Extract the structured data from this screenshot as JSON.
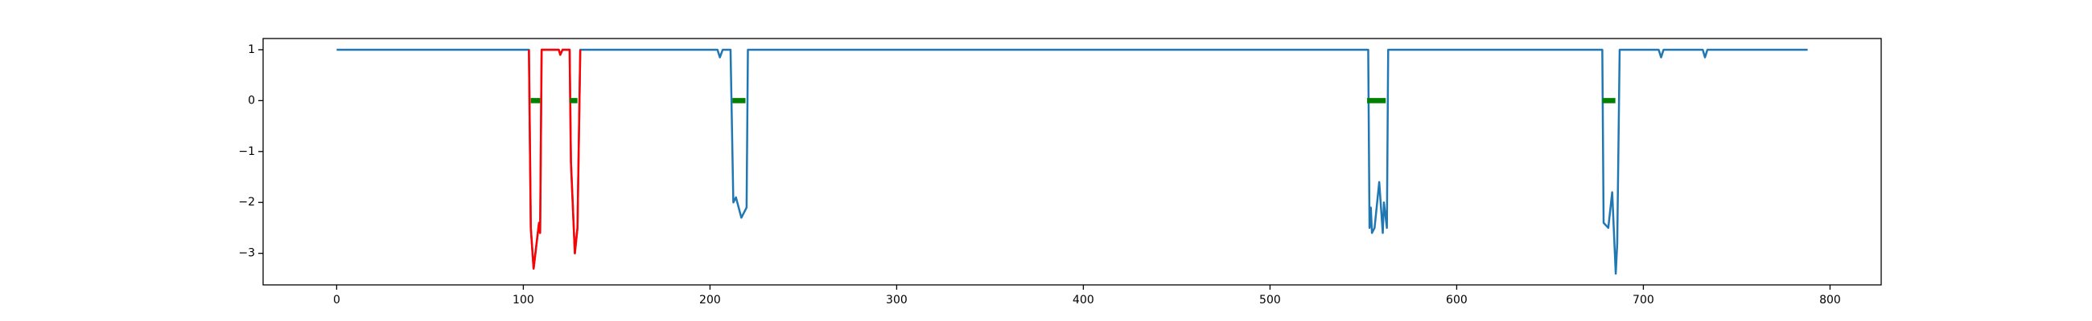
{
  "chart_data": {
    "type": "line",
    "xlim": [
      -39.4,
      827.4
    ],
    "ylim": [
      -3.62,
      1.22
    ],
    "xticks": [
      0,
      100,
      200,
      300,
      400,
      500,
      600,
      700,
      800
    ],
    "yticks": [
      {
        "value": -3,
        "label": "−3"
      },
      {
        "value": -2,
        "label": "−2"
      },
      {
        "value": -1,
        "label": "−1"
      },
      0,
      1
    ],
    "series": [
      {
        "color": "#1f77b4",
        "width": 2.5,
        "x": [
          0,
          103,
          104,
          105.5,
          108.4,
          109,
          109.8,
          119,
          119.8,
          121,
          124.8,
          125.5,
          127.6,
          129,
          130.5,
          204,
          205.3,
          206.8,
          211,
          212.5,
          213.9,
          216.8,
          219.6,
          220.3,
          552.6,
          553.3,
          554,
          554.6,
          556,
          558.5,
          560.4,
          561,
          562.6,
          563.3,
          678,
          678.7,
          681.2,
          683.3,
          685.2,
          686,
          687.3,
          708.2,
          709.5,
          710.8,
          731.8,
          733,
          734.3,
          788
        ],
        "values": [
          1,
          1,
          -2.5,
          -3.3,
          -2.4,
          -2.6,
          1,
          1,
          0.9,
          1,
          1,
          -1.2,
          -3,
          -2.5,
          1,
          1,
          0.85,
          1,
          1,
          -2,
          -1.9,
          -2.3,
          -2.1,
          1,
          1,
          -2.5,
          -2.1,
          -2.6,
          -2.5,
          -1.6,
          -2.6,
          -2,
          -2.5,
          1,
          1,
          -2.4,
          -2.5,
          -1.8,
          -3.4,
          -2.8,
          1,
          1,
          0.85,
          1,
          1,
          0.85,
          1,
          1
        ]
      },
      {
        "color": "#ff0000",
        "width": 2.5,
        "x": [
          103,
          104,
          105.5,
          108.4,
          109,
          109.8,
          119,
          119.8,
          121,
          124.8,
          125.5,
          127.6,
          129,
          130.5
        ],
        "values": [
          1,
          -2.5,
          -3.3,
          -2.4,
          -2.6,
          1,
          1,
          0.9,
          1,
          1,
          -1.2,
          -3,
          -2.5,
          1
        ]
      },
      {
        "color": "#008000",
        "width": 6.5,
        "x": [
          104,
          109,
          110,
          125,
          129,
          130,
          212,
          219,
          220,
          552,
          562,
          563,
          678,
          685
        ],
        "values": [
          0,
          0,
          null,
          0,
          0,
          null,
          0,
          0,
          null,
          0,
          0,
          null,
          0,
          0
        ]
      }
    ]
  }
}
